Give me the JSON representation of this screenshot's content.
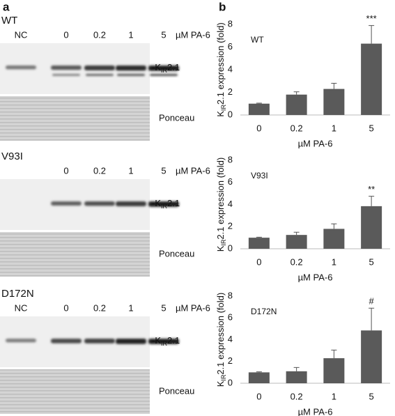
{
  "panel_labels": [
    "a",
    "b"
  ],
  "blots": [
    {
      "genotype": "WT",
      "lanes": [
        "NC",
        "0",
        "0.2",
        "1",
        "5"
      ],
      "unit": "µM PA-6",
      "band_label": {
        "prefix": "-K",
        "sub": "IR",
        "suffix": "2.1"
      },
      "loading": "Ponceau"
    },
    {
      "genotype": "V93I",
      "lanes": [
        null,
        "0",
        "0.2",
        "1",
        "5"
      ],
      "unit": "µM PA-6",
      "band_label": {
        "prefix": "-K",
        "sub": "IR",
        "suffix": "2.1"
      },
      "loading": "Ponceau"
    },
    {
      "genotype": "D172N",
      "lanes": [
        "NC",
        "0",
        "0.2",
        "1",
        "5"
      ],
      "unit": "µM PA-6",
      "band_label": {
        "prefix": "-K",
        "sub": "IR",
        "suffix": "2.1"
      },
      "loading": "Ponceau"
    }
  ],
  "chart_data": [
    {
      "type": "bar",
      "label": "WT",
      "y_label": {
        "prefix": "K",
        "sub": "IR",
        "suffix": "2.1 expression (fold)"
      },
      "x_label": "µM PA-6",
      "categories": [
        "0",
        "0.2",
        "1",
        "5"
      ],
      "values": [
        1,
        1.8,
        2.3,
        6.3
      ],
      "errors": [
        0.05,
        0.25,
        0.5,
        1.6
      ],
      "significance": [
        null,
        null,
        null,
        "***"
      ],
      "color": "#5a5a5a",
      "ylim": [
        0,
        8
      ],
      "yticks": [
        0,
        2,
        4,
        6,
        8
      ]
    },
    {
      "type": "bar",
      "label": "V93I",
      "y_label": {
        "prefix": "K",
        "sub": "IR",
        "suffix": "2.1 expression (fold)"
      },
      "x_label": "µM PA-6",
      "categories": [
        "0",
        "0.2",
        "1",
        "5"
      ],
      "values": [
        1,
        1.25,
        1.8,
        3.85
      ],
      "errors": [
        0.05,
        0.25,
        0.45,
        0.9
      ],
      "significance": [
        null,
        null,
        null,
        "**"
      ],
      "color": "#5a5a5a",
      "ylim": [
        0,
        8
      ],
      "yticks": [
        0,
        2,
        4,
        6,
        8
      ]
    },
    {
      "type": "bar",
      "label": "D172N",
      "y_label": {
        "prefix": "K",
        "sub": "IR",
        "suffix": "2.1 expression (fold)"
      },
      "x_label": "µM PA-6",
      "categories": [
        "0",
        "0.2",
        "1",
        "5"
      ],
      "values": [
        1,
        1.1,
        2.3,
        4.85
      ],
      "errors": [
        0.05,
        0.35,
        0.75,
        2.05
      ],
      "significance": [
        null,
        null,
        null,
        "#"
      ],
      "color": "#5a5a5a",
      "ylim": [
        0,
        8
      ],
      "yticks": [
        0,
        2,
        4,
        6,
        8
      ]
    }
  ]
}
